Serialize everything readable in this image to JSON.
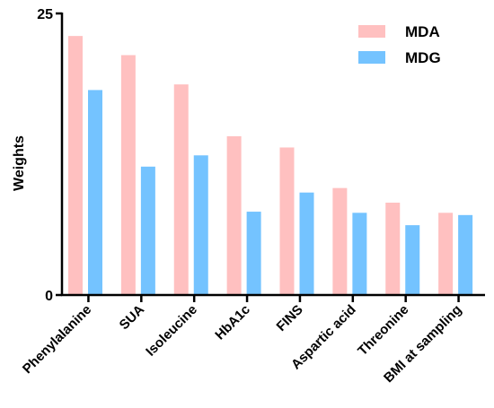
{
  "chart_data": {
    "type": "bar",
    "categories": [
      "Phenylalanine",
      "SUA",
      "Isoleucine",
      "HbA1c",
      "FINS",
      "Aspartic acid",
      "Threonine",
      "BMI at sampling"
    ],
    "series": [
      {
        "name": "MDA",
        "color": "#ffc0c0",
        "values": [
          23.0,
          21.3,
          18.7,
          14.1,
          13.1,
          9.5,
          8.2,
          7.3
        ]
      },
      {
        "name": "MDG",
        "color": "#74c3ff",
        "values": [
          18.2,
          11.4,
          12.4,
          7.4,
          9.1,
          7.3,
          6.2,
          7.1
        ]
      }
    ],
    "ylabel": "Weights",
    "xlabel": "",
    "ylim": [
      0,
      25
    ],
    "yticks": [
      0,
      25
    ],
    "legend_position": "top-right",
    "grid": false
  }
}
